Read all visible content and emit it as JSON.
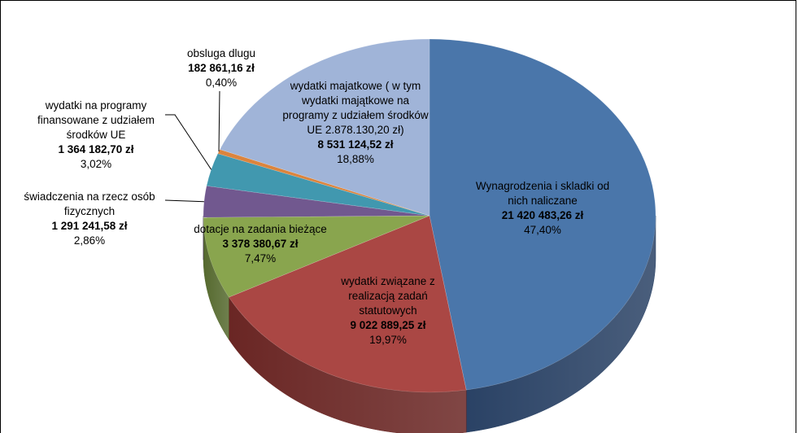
{
  "chart_data": {
    "type": "pie",
    "title": "",
    "slices": [
      {
        "name": "Wynagrodzenia i składki od nich naliczane",
        "label": "Wynagrodzenia i skladki od nich naliczane",
        "value_text": "21 420 483,26 zł",
        "value": 21420483.26,
        "percent_text": "47,40%",
        "percent": 47.4,
        "color": "#4A76AA",
        "side": "#2A4265"
      },
      {
        "name": "wydatki związane z realizacją zadań statutowych",
        "label": "wydatki związane z realizacją zadań statutowych",
        "value_text": "9 022 889,25 zł",
        "value": 9022889.25,
        "percent_text": "19,97%",
        "percent": 19.97,
        "color": "#AA4744",
        "side": "#6A2624"
      },
      {
        "name": "dotacje na zadania bieżące",
        "label": "dotacje na zadania bieżące",
        "value_text": "3 378 380,67 zł",
        "value": 3378380.67,
        "percent_text": "7,47%",
        "percent": 7.47,
        "color": "#89A54E",
        "side": "#55692E"
      },
      {
        "name": "świadczenia na rzecz osób fizycznych",
        "label": "świadczenia na rzecz osób fizycznych",
        "value_text": "1 291 241,58 zł",
        "value": 1291241.58,
        "percent_text": "2,86%",
        "percent": 2.86,
        "color": "#71588F",
        "side": "#463659"
      },
      {
        "name": "wydatki na programy finansowane z udziałem środków UE",
        "label": "wydatki na programy finansowane z udziałem środków UE",
        "value_text": "1 364 182,70 zł",
        "value": 1364182.7,
        "percent_text": "3,02%",
        "percent": 3.02,
        "color": "#4198AF",
        "side": "#275E6C"
      },
      {
        "name": "obsługa długu",
        "label": "obsluga dlugu",
        "value_text": "182 861,16 zł",
        "value": 182861.16,
        "percent_text": "0,40%",
        "percent": 0.4,
        "color": "#DB843D",
        "side": "#8A5226"
      },
      {
        "name": "wydatki majątkowe",
        "label": "wydatki majatkowe ( w tym wydatki majątkowe na programy z udziałem środków UE 2.878.130,20 zł)",
        "value_text": "8 531 124,52 zł",
        "value": 8531124.52,
        "percent_text": "18,88%",
        "percent": 18.88,
        "color": "#A0B4D8",
        "side": "#6D7E9E"
      }
    ]
  }
}
